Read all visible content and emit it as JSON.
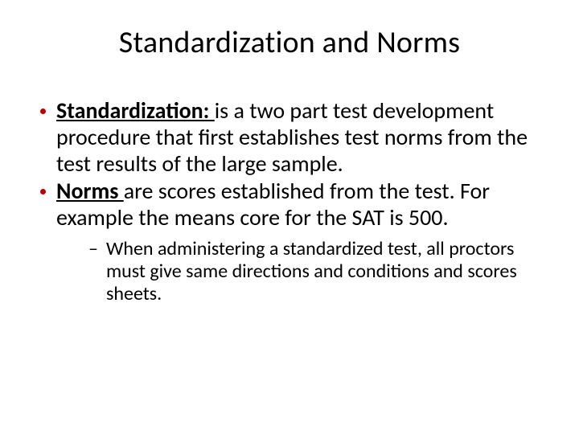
{
  "slide": {
    "title": "Standardization and Norms",
    "bullet1_term": "Standardization: ",
    "bullet1_text": "is a two part test development procedure that first establishes test norms from the test results of the large sample.",
    "bullet2_term": "Norms ",
    "bullet2_text": "are scores established from the test. For example the means core for the SAT is 500.",
    "sub_bullet": "When administering a standardized test, all proctors must give same directions and conditions and scores sheets.",
    "colors": {
      "bullet_color": "#c00000",
      "text_color": "#000000",
      "background": "#ffffff"
    },
    "typography": {
      "title_fontsize": 38,
      "body_fontsize": 28,
      "sub_fontsize": 24,
      "font_family": "Calibri"
    }
  }
}
